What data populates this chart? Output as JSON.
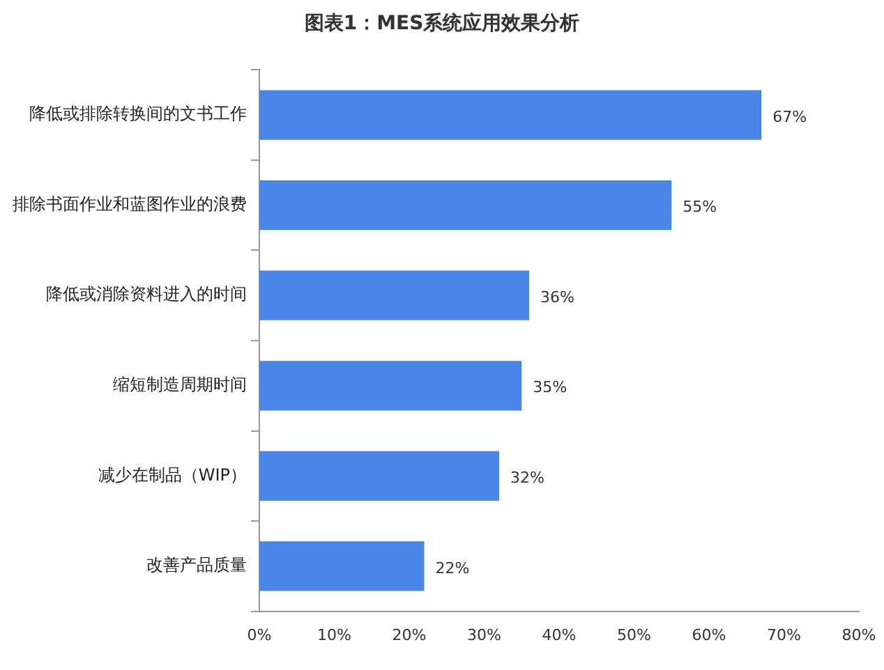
{
  "chart_data": {
    "type": "bar",
    "orientation": "horizontal",
    "title": "图表1：MES系统应用效果分析",
    "categories": [
      "降低或排除转换间的文书工作",
      "排除书面作业和蓝图作业的浪费",
      "降低或消除资料进入的时间",
      "缩短制造周期时间",
      "减少在制品（WIP）",
      "改善产品质量"
    ],
    "values": [
      67,
      55,
      36,
      35,
      32,
      22
    ],
    "value_labels": [
      "67%",
      "55%",
      "36%",
      "35%",
      "32%",
      "22%"
    ],
    "color": "#4a86e8",
    "xlim": [
      0,
      80
    ],
    "xticks": [
      {
        "value": 0,
        "label": "0%"
      },
      {
        "value": 10,
        "label": "10%"
      },
      {
        "value": 20,
        "label": "20%"
      },
      {
        "value": 30,
        "label": "30%"
      },
      {
        "value": 40,
        "label": "40%"
      },
      {
        "value": 50,
        "label": "50%"
      },
      {
        "value": 60,
        "label": "60%"
      },
      {
        "value": 70,
        "label": "70%"
      },
      {
        "value": 80,
        "label": "80%"
      }
    ],
    "grid": false,
    "legend": false
  }
}
